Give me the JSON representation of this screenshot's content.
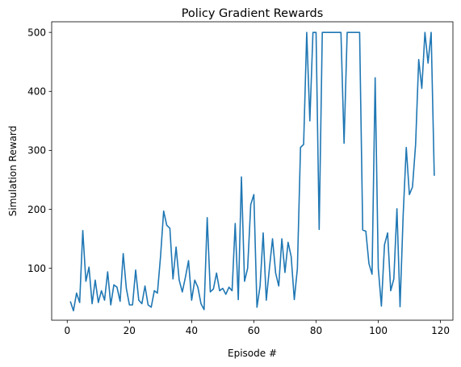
{
  "chart_data": {
    "type": "line",
    "title": "Policy Gradient Rewards",
    "xlabel": "Episode #",
    "ylabel": "Simulation Reward",
    "xlim": [
      -5,
      124
    ],
    "ylim": [
      12,
      518
    ],
    "xticks": [
      0,
      20,
      40,
      60,
      80,
      100,
      120
    ],
    "yticks": [
      100,
      200,
      300,
      400,
      500
    ],
    "grid": false,
    "line_color": "#1f77b4",
    "series": [
      {
        "x": [
          1,
          2,
          3,
          4,
          5,
          6,
          7,
          8,
          9,
          10,
          11,
          12,
          13,
          14,
          15,
          16,
          17,
          18,
          19,
          20,
          21,
          22,
          23,
          24,
          25,
          26,
          27,
          28,
          29,
          30,
          31,
          32,
          33,
          34,
          35,
          36,
          37,
          38,
          39,
          40,
          41,
          42,
          43,
          44,
          45,
          46,
          47,
          48,
          49,
          50,
          51,
          52,
          53,
          54,
          55,
          56,
          57,
          58,
          59,
          60,
          61,
          62,
          63,
          64,
          65,
          66,
          67,
          68,
          69,
          70,
          71,
          72,
          73,
          74,
          75,
          76,
          77,
          78,
          79,
          80,
          81,
          82,
          83,
          84,
          85,
          86,
          87,
          88,
          89,
          90,
          91,
          92,
          93,
          94,
          95,
          96,
          97,
          98,
          99,
          100,
          101,
          102,
          103,
          104,
          105,
          106,
          107,
          108,
          109,
          110,
          111,
          112,
          113,
          114,
          115,
          116,
          117,
          118
        ],
        "y": [
          44,
          28,
          58,
          42,
          164,
          78,
          102,
          40,
          80,
          42,
          62,
          46,
          94,
          38,
          72,
          68,
          44,
          125,
          66,
          38,
          38,
          97,
          46,
          40,
          70,
          38,
          34,
          62,
          58,
          120,
          197,
          173,
          168,
          82,
          136,
          80,
          60,
          85,
          113,
          46,
          80,
          68,
          40,
          30,
          186,
          60,
          65,
          92,
          62,
          66,
          56,
          68,
          62,
          176,
          47,
          255,
          78,
          100,
          208,
          225,
          34,
          70,
          160,
          46,
          100,
          150,
          92,
          70,
          150,
          93,
          144,
          120,
          47,
          100,
          305,
          310,
          500,
          350,
          500,
          500,
          166,
          500,
          500,
          500,
          500,
          500,
          500,
          500,
          312,
          500,
          500,
          500,
          500,
          500,
          165,
          163,
          108,
          90,
          423,
          100,
          36,
          140,
          160,
          62,
          82,
          201,
          35,
          190,
          305,
          225,
          238,
          310,
          454,
          405,
          500,
          448,
          500,
          257
        ]
      }
    ]
  }
}
